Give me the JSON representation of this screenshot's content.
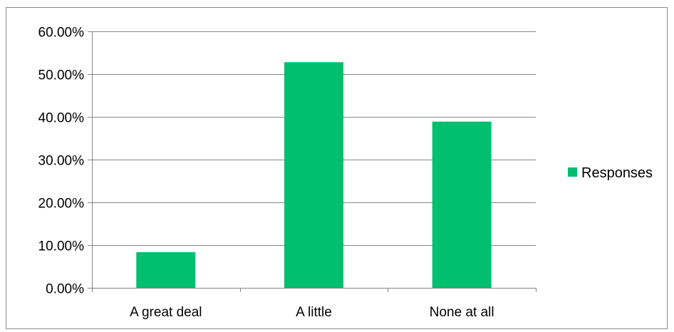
{
  "chart_data": {
    "type": "bar",
    "categories": [
      "A great deal",
      "A little",
      "None at all"
    ],
    "series": [
      {
        "name": "Responses",
        "values": [
          8.33,
          52.78,
          38.89
        ],
        "color": "#00bf6f"
      }
    ],
    "title": "",
    "xlabel": "",
    "ylabel": "",
    "ylim": [
      0,
      60
    ],
    "yticks": [
      0,
      10,
      20,
      30,
      40,
      50,
      60
    ],
    "ytick_labels": [
      "0.00%",
      "10.00%",
      "20.00%",
      "30.00%",
      "40.00%",
      "50.00%",
      "60.00%"
    ],
    "value_format": "percent",
    "grid": true,
    "gridline_color": "#868686",
    "legend_position": "right"
  }
}
